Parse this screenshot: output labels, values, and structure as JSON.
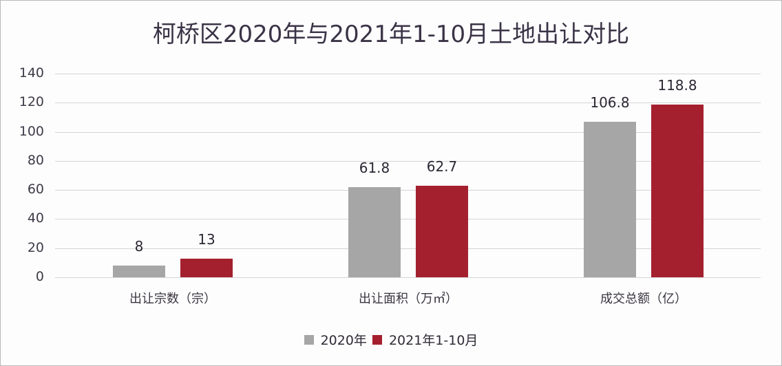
{
  "chart_data": {
    "type": "bar",
    "title": "柯桥区2020年与2021年1-10月土地出让对比",
    "categories": [
      "出让宗数（宗）",
      "出让面积（万㎡）",
      "成交总额（亿）"
    ],
    "series": [
      {
        "name": "2020年",
        "color": "#a6a6a6",
        "values": [
          8,
          61.8,
          106.8
        ]
      },
      {
        "name": "2021年1-10月",
        "color": "#a4202e",
        "values": [
          13,
          62.7,
          118.8
        ]
      }
    ],
    "xlabel": "",
    "ylabel": "",
    "ylim": [
      0,
      140
    ],
    "yticks": [
      0,
      20,
      40,
      60,
      80,
      100,
      120,
      140
    ],
    "grid": true,
    "legend_position": "bottom",
    "data_labels": {
      "2020年": [
        "8",
        "61.8",
        "106.8"
      ],
      "2021年1-10月": [
        "13",
        "62.7",
        "118.8"
      ]
    }
  },
  "yticks_text": [
    "140",
    "120",
    "100",
    "80",
    "60",
    "40",
    "20",
    "0"
  ],
  "legend": [
    {
      "label": "2020年",
      "color": "#a6a6a6"
    },
    {
      "label": "2021年1-10月",
      "color": "#a4202e"
    }
  ]
}
